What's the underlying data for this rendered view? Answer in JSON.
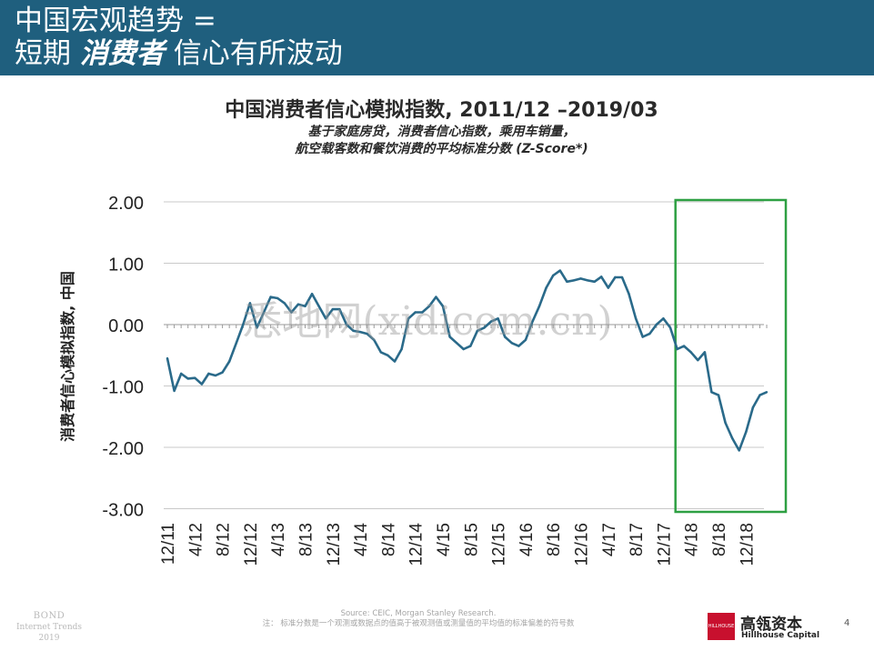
{
  "header": {
    "title_line1": "中国宏观趋势 =",
    "title_line2_pre": "短期 ",
    "title_line2_emph": "消费者",
    "title_line2_post": " 信心有所波动"
  },
  "watermark": "悉地网(xidicom.cn)",
  "footer": {
    "logo_line1": "BOND",
    "logo_line2": "Internet Trends",
    "logo_line3": "2019",
    "source": "Source: CEIC, Morgan Stanley Research.",
    "note": "注： 标准分数是一个观测或数据点的值高于被观测值或测量值的平均值的标准偏差的符号数",
    "brand_mark": "HILLHOUSE",
    "brand_cn": "高瓴资本",
    "brand_en": "Hillhouse Capital",
    "page_number": "4"
  },
  "colors": {
    "header_bg": "#1f5f7e",
    "line": "#2a6a8a",
    "highlight_box": "#2ea043",
    "grid": "#c9c9c9"
  },
  "chart_data": {
    "type": "line",
    "title": "中国消费者信心模拟指数, 2011/12 –2019/03",
    "subtitle_line1": "基于家庭房贷，消费者信心指数，乘用车销量，",
    "subtitle_line2": "航空载客数和餐饮消费的平均标准分数 (Z-Score*)",
    "ylabel": "消费者信心模拟指数, 中国",
    "xlabel": "",
    "ylim": [
      -3.0,
      2.0
    ],
    "y_ticks": [
      "2.00",
      "1.00",
      "0.00",
      "-1.00",
      "-2.00",
      "-3.00"
    ],
    "x_ticks": [
      "12/11",
      "4/12",
      "8/12",
      "12/12",
      "4/13",
      "8/13",
      "12/13",
      "4/14",
      "8/14",
      "12/14",
      "4/15",
      "8/15",
      "12/15",
      "4/16",
      "8/16",
      "12/16",
      "4/17",
      "8/17",
      "12/17",
      "4/18",
      "8/18",
      "12/18"
    ],
    "grid": true,
    "highlight": {
      "x_from": "2018/04",
      "x_to": "2019/03",
      "note": "green box"
    },
    "series": [
      {
        "x": [
          "2011/12",
          "2012/01",
          "2012/02",
          "2012/03",
          "2012/04",
          "2012/05",
          "2012/06",
          "2012/07",
          "2012/08",
          "2012/09",
          "2012/10",
          "2012/11",
          "2012/12",
          "2013/01",
          "2013/02",
          "2013/03",
          "2013/04",
          "2013/05",
          "2013/06",
          "2013/07",
          "2013/08",
          "2013/09",
          "2013/10",
          "2013/11",
          "2013/12",
          "2014/01",
          "2014/02",
          "2014/03",
          "2014/04",
          "2014/05",
          "2014/06",
          "2014/07",
          "2014/08",
          "2014/09",
          "2014/10",
          "2014/11",
          "2014/12",
          "2015/01",
          "2015/02",
          "2015/03",
          "2015/04",
          "2015/05",
          "2015/06",
          "2015/07",
          "2015/08",
          "2015/09",
          "2015/10",
          "2015/11",
          "2015/12",
          "2016/01",
          "2016/02",
          "2016/03",
          "2016/04",
          "2016/05",
          "2016/06",
          "2016/07",
          "2016/08",
          "2016/09",
          "2016/10",
          "2016/11",
          "2016/12",
          "2017/01",
          "2017/02",
          "2017/03",
          "2017/04",
          "2017/05",
          "2017/06",
          "2017/07",
          "2017/08",
          "2017/09",
          "2017/10",
          "2017/11",
          "2017/12",
          "2018/01",
          "2018/02",
          "2018/03",
          "2018/04",
          "2018/05",
          "2018/06",
          "2018/07",
          "2018/08",
          "2018/09",
          "2018/10",
          "2018/11",
          "2018/12",
          "2019/01",
          "2019/02",
          "2019/03"
        ],
        "values": [
          -0.55,
          -1.08,
          -0.8,
          -0.88,
          -0.87,
          -0.97,
          -0.8,
          -0.83,
          -0.78,
          -0.6,
          -0.3,
          0.0,
          0.35,
          -0.05,
          0.2,
          0.45,
          0.43,
          0.35,
          0.2,
          0.33,
          0.3,
          0.5,
          0.3,
          0.1,
          0.25,
          0.25,
          0.0,
          -0.1,
          -0.12,
          -0.15,
          -0.25,
          -0.45,
          -0.5,
          -0.6,
          -0.4,
          0.1,
          0.2,
          0.2,
          0.3,
          0.45,
          0.3,
          -0.2,
          -0.3,
          -0.4,
          -0.35,
          -0.1,
          -0.05,
          0.05,
          0.1,
          -0.2,
          -0.3,
          -0.35,
          -0.25,
          0.05,
          0.3,
          0.6,
          0.8,
          0.88,
          0.7,
          0.72,
          0.75,
          0.72,
          0.7,
          0.78,
          0.6,
          0.77,
          0.77,
          0.5,
          0.1,
          -0.2,
          -0.15,
          0.0,
          0.1,
          -0.05,
          -0.4,
          -0.35,
          -0.45,
          -0.58,
          -0.45,
          -1.1,
          -1.15,
          -1.6,
          -1.85,
          -2.05,
          -1.75,
          -1.35,
          -1.15,
          -1.1
        ]
      }
    ]
  }
}
